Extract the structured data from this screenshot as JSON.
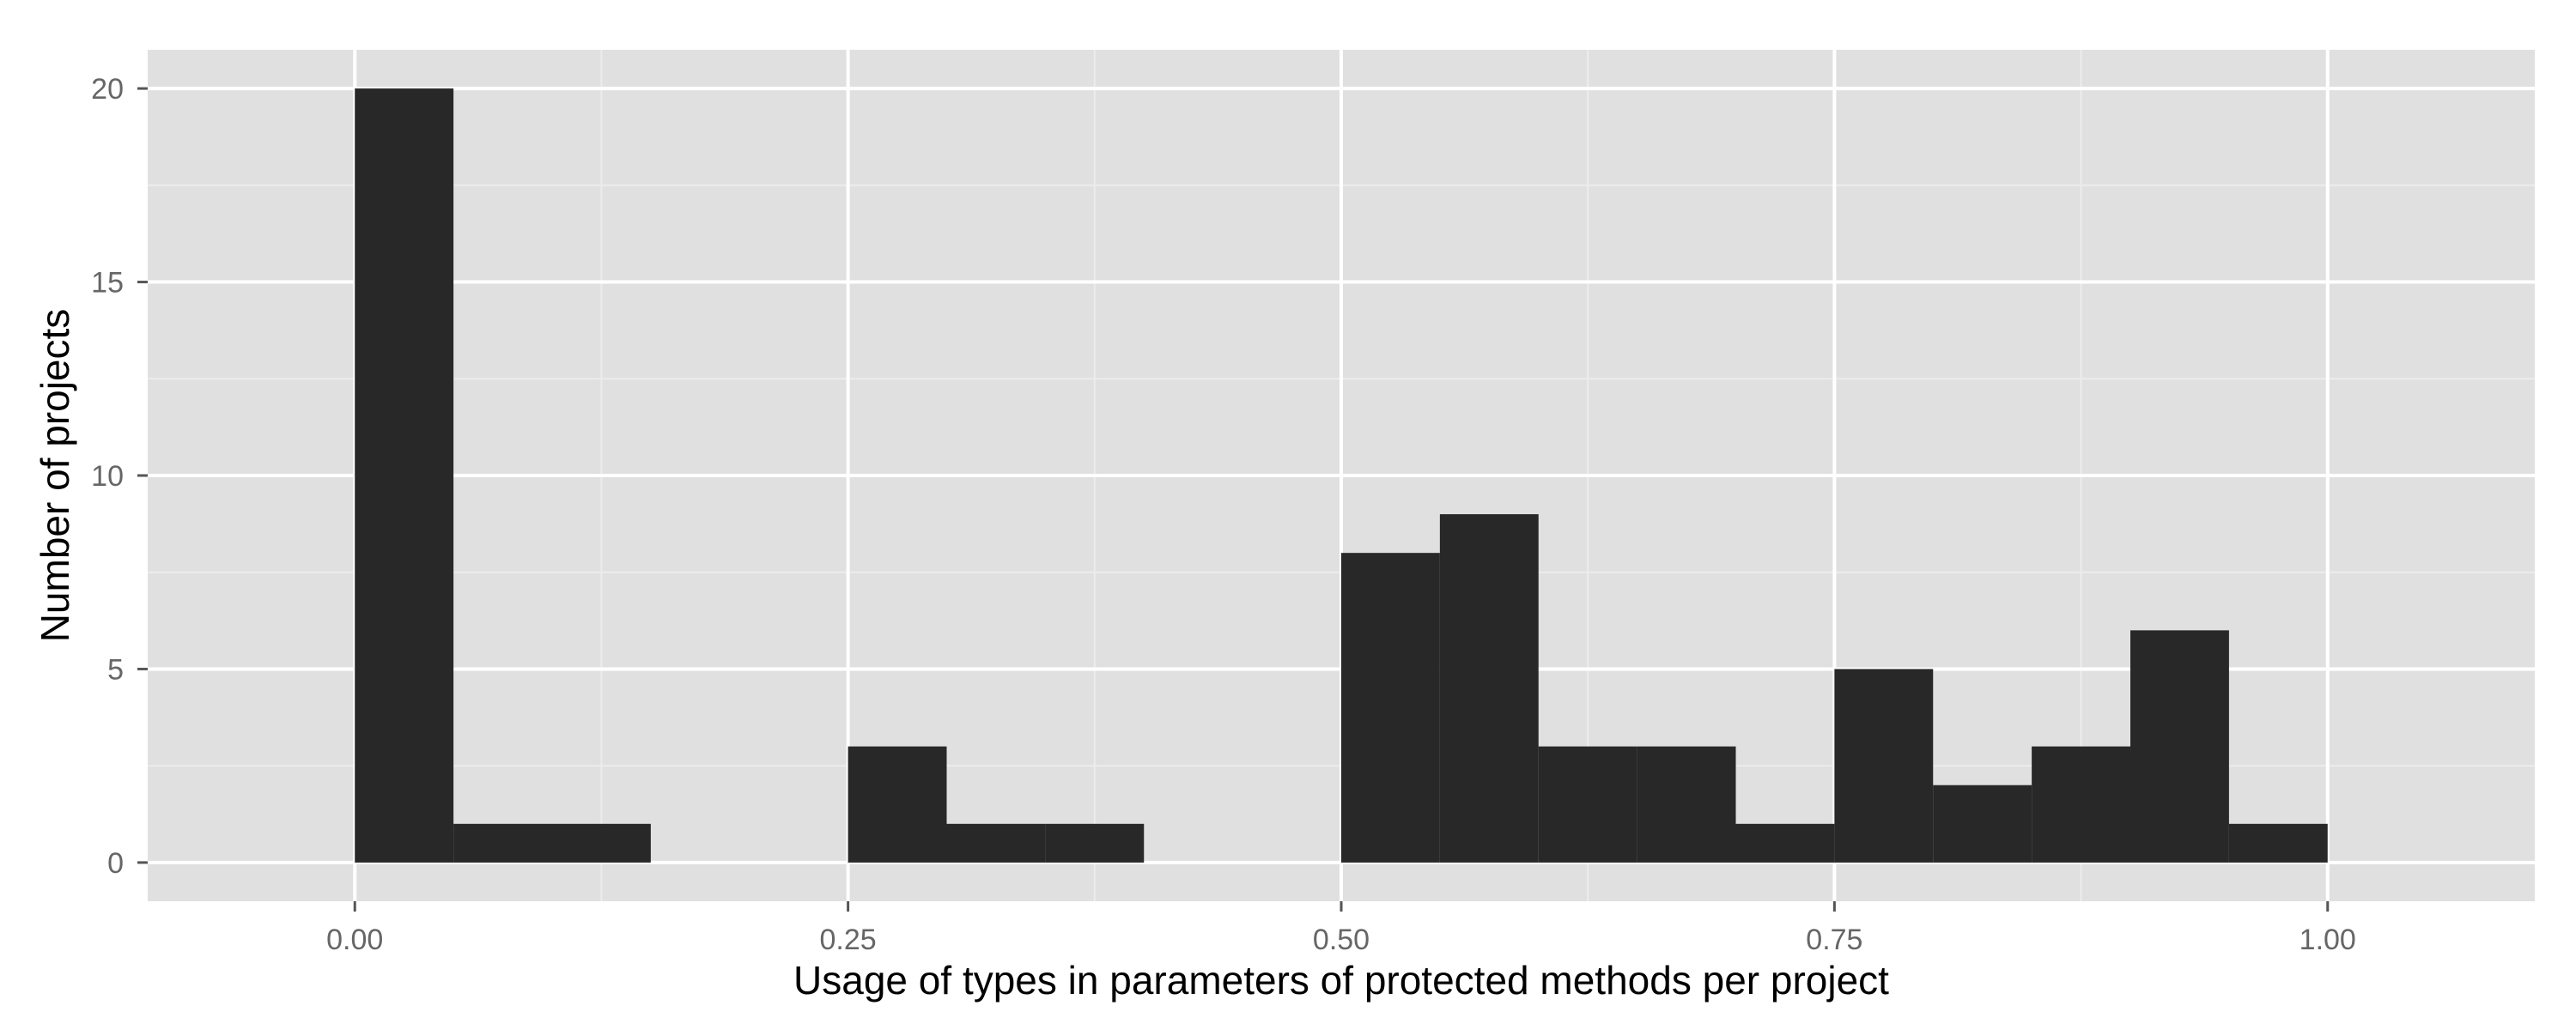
{
  "chart_data": {
    "type": "bar",
    "subtype": "histogram",
    "xlabel": "Usage of types in parameters of protected methods per project",
    "ylabel": "Number of projects",
    "xlim": [
      -0.105,
      1.105
    ],
    "ylim": [
      -1.0,
      21.0
    ],
    "x_ticks": [
      0.0,
      0.25,
      0.5,
      0.75,
      1.0
    ],
    "x_tick_labels": [
      "0.00",
      "0.25",
      "0.50",
      "0.75",
      "1.00"
    ],
    "y_ticks": [
      0,
      5,
      10,
      15,
      20
    ],
    "y_tick_labels": [
      "0",
      "5",
      "10",
      "15",
      "20"
    ],
    "bin_width": 0.05,
    "bins": [
      {
        "x0": 0.0,
        "x1": 0.05,
        "count": 20
      },
      {
        "x0": 0.05,
        "x1": 0.1,
        "count": 1
      },
      {
        "x0": 0.1,
        "x1": 0.15,
        "count": 1
      },
      {
        "x0": 0.15,
        "x1": 0.2,
        "count": 0
      },
      {
        "x0": 0.2,
        "x1": 0.25,
        "count": 0
      },
      {
        "x0": 0.25,
        "x1": 0.3,
        "count": 3
      },
      {
        "x0": 0.3,
        "x1": 0.35,
        "count": 1
      },
      {
        "x0": 0.35,
        "x1": 0.4,
        "count": 1
      },
      {
        "x0": 0.4,
        "x1": 0.45,
        "count": 0
      },
      {
        "x0": 0.45,
        "x1": 0.5,
        "count": 0
      },
      {
        "x0": 0.5,
        "x1": 0.55,
        "count": 8
      },
      {
        "x0": 0.55,
        "x1": 0.6,
        "count": 9
      },
      {
        "x0": 0.6,
        "x1": 0.65,
        "count": 3
      },
      {
        "x0": 0.65,
        "x1": 0.7,
        "count": 3
      },
      {
        "x0": 0.7,
        "x1": 0.75,
        "count": 1
      },
      {
        "x0": 0.75,
        "x1": 0.8,
        "count": 5
      },
      {
        "x0": 0.8,
        "x1": 0.85,
        "count": 2
      },
      {
        "x0": 0.85,
        "x1": 0.9,
        "count": 3
      },
      {
        "x0": 0.9,
        "x1": 0.95,
        "count": 6
      },
      {
        "x0": 0.95,
        "x1": 1.0,
        "count": 1
      }
    ],
    "colors": {
      "panel": "#e0e0e0",
      "bar": "#282828",
      "grid": "#ffffff"
    },
    "grid": true,
    "legend": "none"
  }
}
